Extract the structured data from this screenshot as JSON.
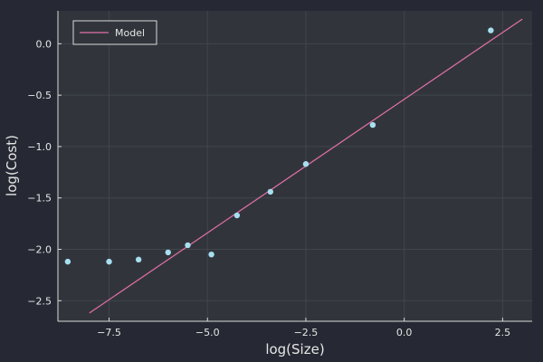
{
  "chart_data": {
    "type": "scatter",
    "title": "",
    "xlabel": "log(Size)",
    "ylabel": "log(Cost)",
    "xlim": [
      -8.8,
      3.25
    ],
    "ylim": [
      -2.7,
      0.32
    ],
    "xticks": [
      -7.5,
      -5.0,
      -2.5,
      0.0,
      2.5
    ],
    "xtick_labels": [
      "−7.5",
      "−5.0",
      "−2.5",
      "0.0",
      "2.5"
    ],
    "yticks": [
      -2.5,
      -2.0,
      -1.5,
      -1.0,
      -0.5,
      0.0
    ],
    "ytick_labels": [
      "−2.5",
      "−2.0",
      "−1.5",
      "−1.0",
      "−0.5",
      "0.0"
    ],
    "grid": true,
    "legend_position": "top-left",
    "series": [
      {
        "kind": "scatter",
        "color": "#a8dff0",
        "x": [
          -8.55,
          -7.5,
          -6.75,
          -6.0,
          -5.5,
          -4.9,
          -4.25,
          -3.4,
          -2.5,
          -0.8,
          2.2
        ],
        "y": [
          -2.12,
          -2.12,
          -2.1,
          -2.03,
          -1.96,
          -2.05,
          -1.67,
          -1.44,
          -1.17,
          -0.79,
          0.13
        ]
      },
      {
        "kind": "line",
        "name": "Model",
        "color": "#e26fa8",
        "x": [
          -8.0,
          3.0
        ],
        "y": [
          -2.62,
          0.24
        ]
      }
    ]
  }
}
